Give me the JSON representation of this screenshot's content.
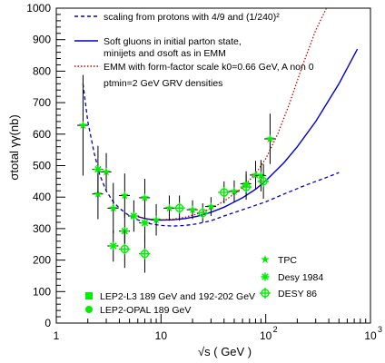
{
  "chart_data": {
    "type": "scatter",
    "title": "",
    "xlabel": "√s ( GeV )",
    "ylabel": "σtotal γγ(nb)",
    "xscale": "log",
    "xlim": [
      1,
      1000
    ],
    "ylim": [
      0,
      1000
    ],
    "grid": false,
    "x_tick_labels": [
      "1",
      "10",
      "10",
      "10"
    ],
    "x_tick_exponents": [
      "",
      "",
      "2",
      "3"
    ],
    "y_tick_labels": [
      "0",
      "100",
      "200",
      "300",
      "400",
      "500",
      "600",
      "700",
      "800",
      "900",
      "1000"
    ],
    "y_ticks": [
      0,
      100,
      200,
      300,
      400,
      500,
      600,
      700,
      800,
      900,
      1000
    ],
    "legend_placement": "top",
    "curves": [
      {
        "name": "scaling from protons with 4/9 and (1/240)²",
        "style": "dashed",
        "color": "#0000cc",
        "x": [
          1.8,
          2.0,
          2.3,
          2.6,
          3.0,
          3.5,
          4.0,
          5.0,
          6.0,
          7.0,
          8.0,
          10.0,
          13.0,
          17.0,
          22.0,
          30.0,
          40.0,
          60.0,
          100.0,
          150.0,
          250.0,
          400.0,
          500.0
        ],
        "y": [
          760,
          640,
          540,
          470,
          420,
          385,
          365,
          340,
          328,
          320,
          315,
          310,
          308,
          310,
          315,
          325,
          340,
          360,
          385,
          410,
          440,
          465,
          478
        ]
      },
      {
        "name": "Soft gluons in initial parton state, minijets and σsoft as in EMM",
        "style": "solid",
        "color": "#0000cc",
        "x": [
          6,
          7,
          8,
          10,
          13,
          17,
          22,
          30,
          40,
          60,
          80,
          100,
          150,
          200,
          300,
          500,
          750
        ],
        "y": [
          338,
          332,
          329,
          327,
          328,
          332,
          339,
          352,
          368,
          398,
          425,
          452,
          510,
          560,
          640,
          760,
          870
        ]
      },
      {
        "name": "EMM with form-factor scale  k0=0.66 GeV, A non 0",
        "style": "dotted",
        "color": "#cc0000",
        "x": [
          6,
          7,
          8,
          10,
          13,
          17,
          22,
          30,
          40,
          60,
          80,
          100,
          130,
          170,
          220,
          300,
          380
        ],
        "y": [
          338,
          332,
          329,
          328,
          330,
          336,
          346,
          364,
          387,
          430,
          475,
          522,
          600,
          700,
          810,
          930,
          1000
        ]
      }
    ],
    "legend_note": "ptmin=2 GeV GRV densities",
    "point_series": [
      {
        "name": "LEP2-L3 189 GeV and 192-202 GeV",
        "marker": "square",
        "color": "#00ee00",
        "x": [],
        "y": []
      },
      {
        "name": "LEP2-OPAL 189 GeV",
        "marker": "circle",
        "color": "#00ee00",
        "x": [],
        "y": []
      },
      {
        "name": "TPC",
        "marker": "star",
        "color": "#00ee00",
        "x": [
          1.8,
          2.5,
          3.0,
          3.5,
          4.5,
          7.0,
          9.0,
          12.0,
          20.0,
          30.0,
          50.0,
          65.0,
          80.0,
          90.0,
          110.0
        ],
        "y": [
          628,
          410,
          480,
          365,
          405,
          398,
          328,
          365,
          360,
          370,
          418,
          442,
          470,
          468,
          585
        ],
        "yerr": [
          160,
          80,
          60,
          80,
          70,
          60,
          50,
          40,
          30,
          30,
          35,
          40,
          45,
          50,
          80
        ]
      },
      {
        "name": "Desy 1984",
        "marker": "asterisk",
        "color": "#00ee00",
        "x": [
          2.5,
          3.5,
          4.5,
          5.5,
          7.0
        ],
        "y": [
          488,
          245,
          292,
          340,
          318
        ],
        "yerr": [
          75,
          50,
          60,
          50,
          60
        ]
      },
      {
        "name": "DESY 86",
        "marker": "plus-circle",
        "color": "#00ee00",
        "x": [
          4.5,
          7.0,
          15.0,
          25.0,
          40.0,
          65.0,
          95.0
        ],
        "y": [
          235,
          220,
          365,
          350,
          415,
          432,
          450
        ],
        "yerr": [
          60,
          60,
          40,
          30,
          35,
          40,
          55
        ]
      }
    ]
  }
}
